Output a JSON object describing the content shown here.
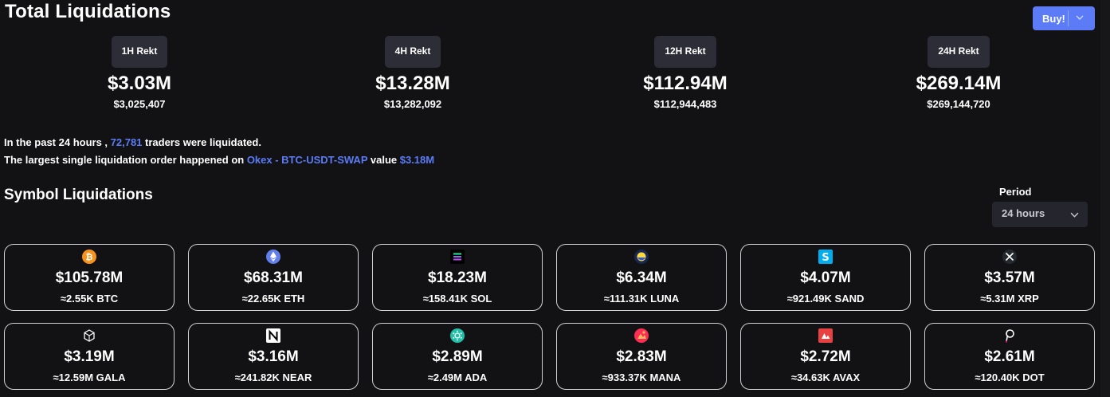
{
  "header": {
    "title": "Total Liquidations",
    "buy_label": "Buy!"
  },
  "rekt": [
    {
      "label": "1H Rekt",
      "value": "$3.03M",
      "exact": "$3,025,407"
    },
    {
      "label": "4H Rekt",
      "value": "$13.28M",
      "exact": "$13,282,092"
    },
    {
      "label": "12H Rekt",
      "value": "$112.94M",
      "exact": "$112,944,483"
    },
    {
      "label": "24H Rekt",
      "value": "$269.14M",
      "exact": "$269,144,720"
    }
  ],
  "info": {
    "line1_prefix": "In the past 24 hours , ",
    "traders_count": "72,781",
    "line1_suffix": " traders were liquidated.",
    "line2_prefix": "The largest single liquidation order happened on ",
    "largest_exchange": "Okex - BTC-USDT-SWAP",
    "line2_mid": " value ",
    "largest_value": "$3.18M"
  },
  "symbols": {
    "title": "Symbol Liquidations",
    "period_label": "Period",
    "period_value": "24 hours",
    "cards": [
      {
        "amount": "$105.78M",
        "qty": "≈2.55K BTC",
        "icon": "btc-icon"
      },
      {
        "amount": "$68.31M",
        "qty": "≈22.65K ETH",
        "icon": "eth-icon"
      },
      {
        "amount": "$18.23M",
        "qty": "≈158.41K SOL",
        "icon": "sol-icon"
      },
      {
        "amount": "$6.34M",
        "qty": "≈111.31K LUNA",
        "icon": "luna-icon"
      },
      {
        "amount": "$4.07M",
        "qty": "≈921.49K SAND",
        "icon": "sand-icon"
      },
      {
        "amount": "$3.57M",
        "qty": "≈5.31M XRP",
        "icon": "xrp-icon"
      },
      {
        "amount": "$3.19M",
        "qty": "≈12.59M GALA",
        "icon": "gala-icon"
      },
      {
        "amount": "$3.16M",
        "qty": "≈241.82K NEAR",
        "icon": "near-icon"
      },
      {
        "amount": "$2.89M",
        "qty": "≈2.49M ADA",
        "icon": "ada-icon"
      },
      {
        "amount": "$2.83M",
        "qty": "≈933.37K MANA",
        "icon": "mana-icon"
      },
      {
        "amount": "$2.72M",
        "qty": "≈34.63K AVAX",
        "icon": "avax-icon"
      },
      {
        "amount": "$2.61M",
        "qty": "≈120.40K DOT",
        "icon": "dot-icon"
      }
    ]
  },
  "colors": {
    "accent": "#5b7cf6",
    "background": "#121214",
    "pill": "#2c2d36"
  }
}
